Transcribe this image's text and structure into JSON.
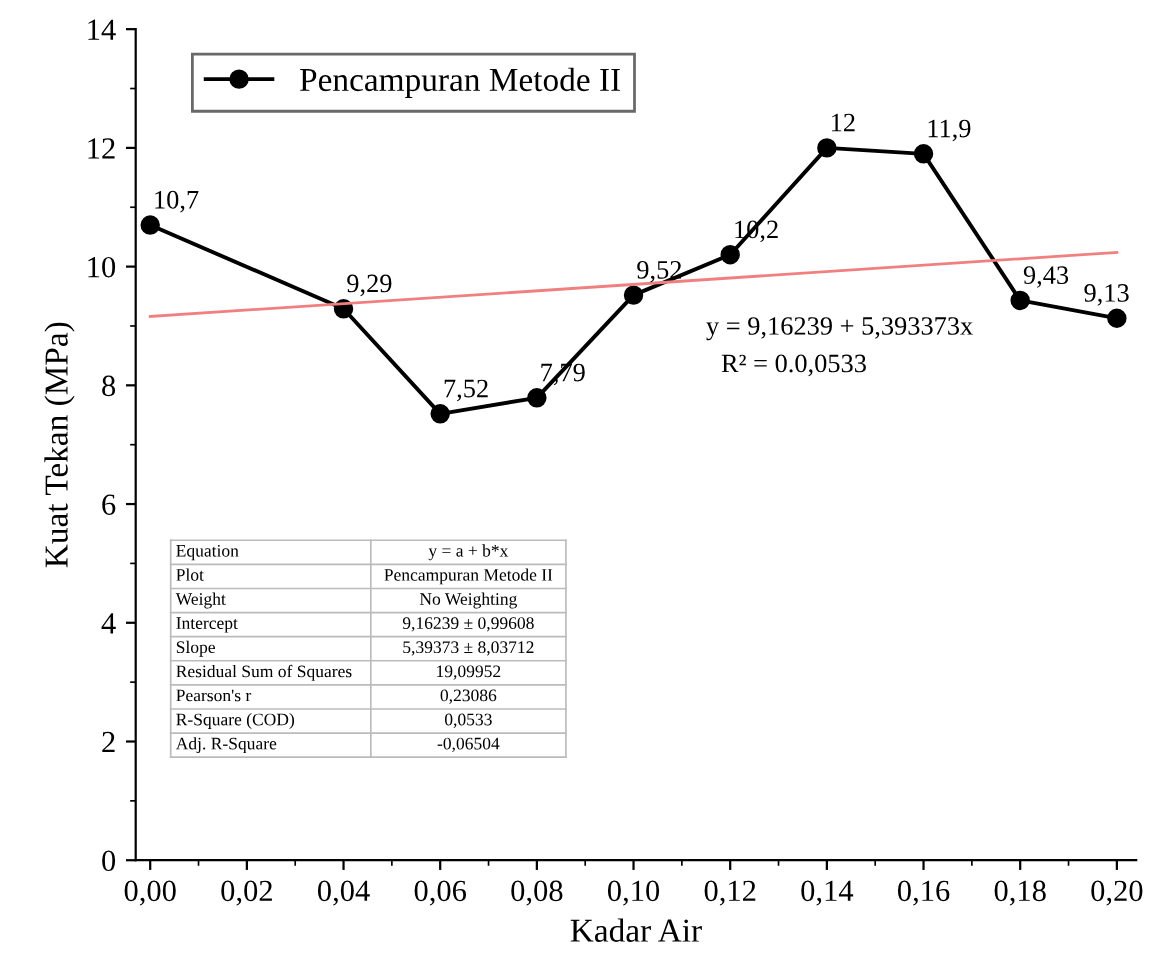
{
  "chart_data": {
    "type": "line",
    "xlabel": "Kadar Air",
    "ylabel": "Kuat Tekan (MPa)",
    "xlim": [
      -0.003,
      0.204
    ],
    "ylim": [
      0,
      14
    ],
    "xticks": [
      {
        "value": 0,
        "label": "0,00"
      },
      {
        "value": 0.02,
        "label": "0,02"
      },
      {
        "value": 0.04,
        "label": "0,04"
      },
      {
        "value": 0.06,
        "label": "0,06"
      },
      {
        "value": 0.08,
        "label": "0,08"
      },
      {
        "value": 0.1,
        "label": "0,10"
      },
      {
        "value": 0.12,
        "label": "0,12"
      },
      {
        "value": 0.14,
        "label": "0,14"
      },
      {
        "value": 0.16,
        "label": "0,16"
      },
      {
        "value": 0.18,
        "label": "0,18"
      },
      {
        "value": 0.2,
        "label": "0,20"
      }
    ],
    "yticks": [
      0,
      2,
      4,
      6,
      8,
      10,
      12,
      14
    ],
    "series": [
      {
        "name": "Pencampuran Metode II",
        "color": "#000000",
        "marker": "circle",
        "x": [
          0,
          0.04,
          0.06,
          0.08,
          0.1,
          0.12,
          0.14,
          0.16,
          0.18,
          0.2
        ],
        "values": [
          10.7,
          9.29,
          7.52,
          7.79,
          9.52,
          10.2,
          12,
          11.9,
          9.43,
          9.13
        ],
        "value_labels": [
          "10,7",
          "9,29",
          "7,52",
          "7,79",
          "9,52",
          "10,2",
          "12",
          "11,9",
          "9,43",
          "9,13"
        ]
      },
      {
        "type": "line",
        "color": "#f08080",
        "marker": "none",
        "x": [
          0,
          0.2
        ],
        "values": [
          9.16,
          10.24
        ]
      }
    ],
    "annotations": [
      "y = 9,16239 + 5,393373x",
      "R² = 0.0,0533",
      "Equation",
      "y = a + b*x",
      "Plot",
      "Pencampuran Metode II",
      "Weight",
      "No Weighting",
      "Intercept",
      "9,16239 ± 0,99608",
      "Slope",
      "5,39373 ± 8,03712",
      "Residual Sum of Squares",
      "19,09952",
      "Pearson's r",
      "0,23086",
      "R-Square (COD)",
      "0,0533",
      "Adj. R-Square",
      "-0,06504"
    ],
    "legend": "top left",
    "grid": false
  }
}
